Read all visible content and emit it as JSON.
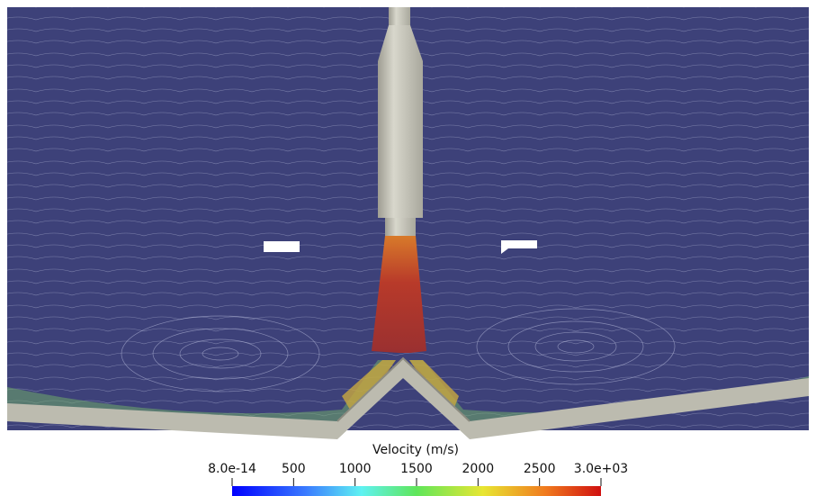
{
  "colorbar": {
    "title": "Velocity (m/s)",
    "range": [
      8e-14,
      3000
    ],
    "ticks": [
      {
        "value": 8e-14,
        "label": "8.0e-14"
      },
      500,
      1000,
      1500,
      2000,
      2500,
      {
        "value": 3000,
        "label": "3.0e+03"
      }
    ]
  }
}
